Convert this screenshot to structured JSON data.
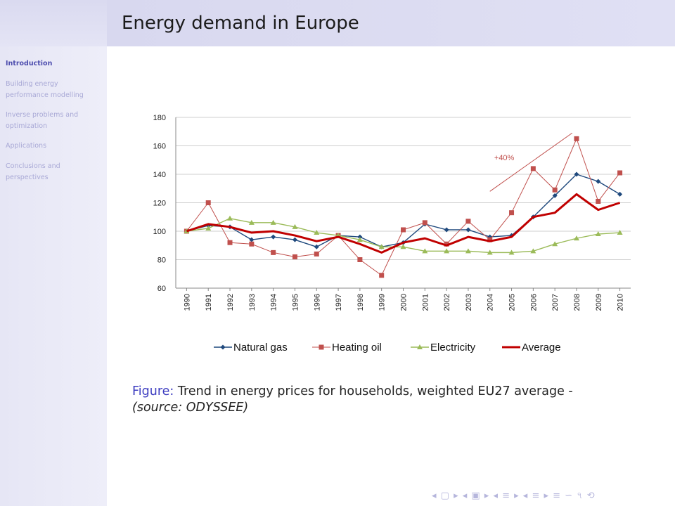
{
  "frame": {
    "title": "Energy demand in Europe"
  },
  "sidebar": {
    "items": [
      {
        "label": "Introduction",
        "active": true
      },
      {
        "label": "Building energy performance modelling",
        "active": false
      },
      {
        "label": "Inverse problems and optimization",
        "active": false
      },
      {
        "label": "Applications",
        "active": false
      },
      {
        "label": "Conclusions and perspectives",
        "active": false
      }
    ]
  },
  "caption": {
    "prefix": "Figure:",
    "text": "Trend in energy prices for households, weighted EU27 average -",
    "source": "(source: ODYSSEE)"
  },
  "beamer_nav": {
    "symbols": "◂ ▢ ▸ ◂ ▣ ▸ ◂ ≡ ▸ ◂ ≡ ▸ ≡ ∽ ৭ ⟲"
  },
  "chart_data": {
    "type": "line",
    "title": "",
    "xlabel": "",
    "ylabel": "",
    "ylim": [
      60,
      180
    ],
    "yticks": [
      60,
      80,
      100,
      120,
      140,
      160,
      180
    ],
    "grid": true,
    "legend_position": "bottom",
    "annotation": {
      "text": "+40%",
      "color": "#c0504d"
    },
    "categories": [
      "1990",
      "1991",
      "1992",
      "1993",
      "1994",
      "1995",
      "1996",
      "1997",
      "1998",
      "1999",
      "2000",
      "2001",
      "2002",
      "2003",
      "2004",
      "2005",
      "2006",
      "2007",
      "2008",
      "2009",
      "2010"
    ],
    "series": [
      {
        "name": "Natural gas",
        "color": "#1f497d",
        "marker": "diamond",
        "width": 1.4,
        "values": [
          100,
          104,
          103,
          94,
          96,
          94,
          89,
          97,
          96,
          89,
          92,
          105,
          101,
          101,
          96,
          97,
          110,
          125,
          140,
          135,
          126
        ]
      },
      {
        "name": "Heating oil",
        "color": "#c0504d",
        "marker": "square",
        "width": 1.0,
        "values": [
          100,
          120,
          92,
          91,
          85,
          82,
          84,
          97,
          80,
          69,
          101,
          106,
          91,
          107,
          94,
          113,
          144,
          129,
          165,
          121,
          141
        ]
      },
      {
        "name": "Electricity",
        "color": "#9bbb59",
        "marker": "triangle",
        "width": 1.4,
        "values": [
          100,
          102,
          109,
          106,
          106,
          103,
          99,
          97,
          94,
          89,
          89,
          86,
          86,
          86,
          85,
          85,
          86,
          91,
          95,
          98,
          99
        ]
      },
      {
        "name": "Average",
        "color": "#c00000",
        "marker": "none",
        "width": 3.0,
        "values": [
          100,
          105,
          103,
          99,
          100,
          97,
          93,
          96,
          91,
          85,
          92,
          95,
          90,
          96,
          93,
          96,
          110,
          113,
          126,
          115,
          120
        ]
      }
    ]
  }
}
